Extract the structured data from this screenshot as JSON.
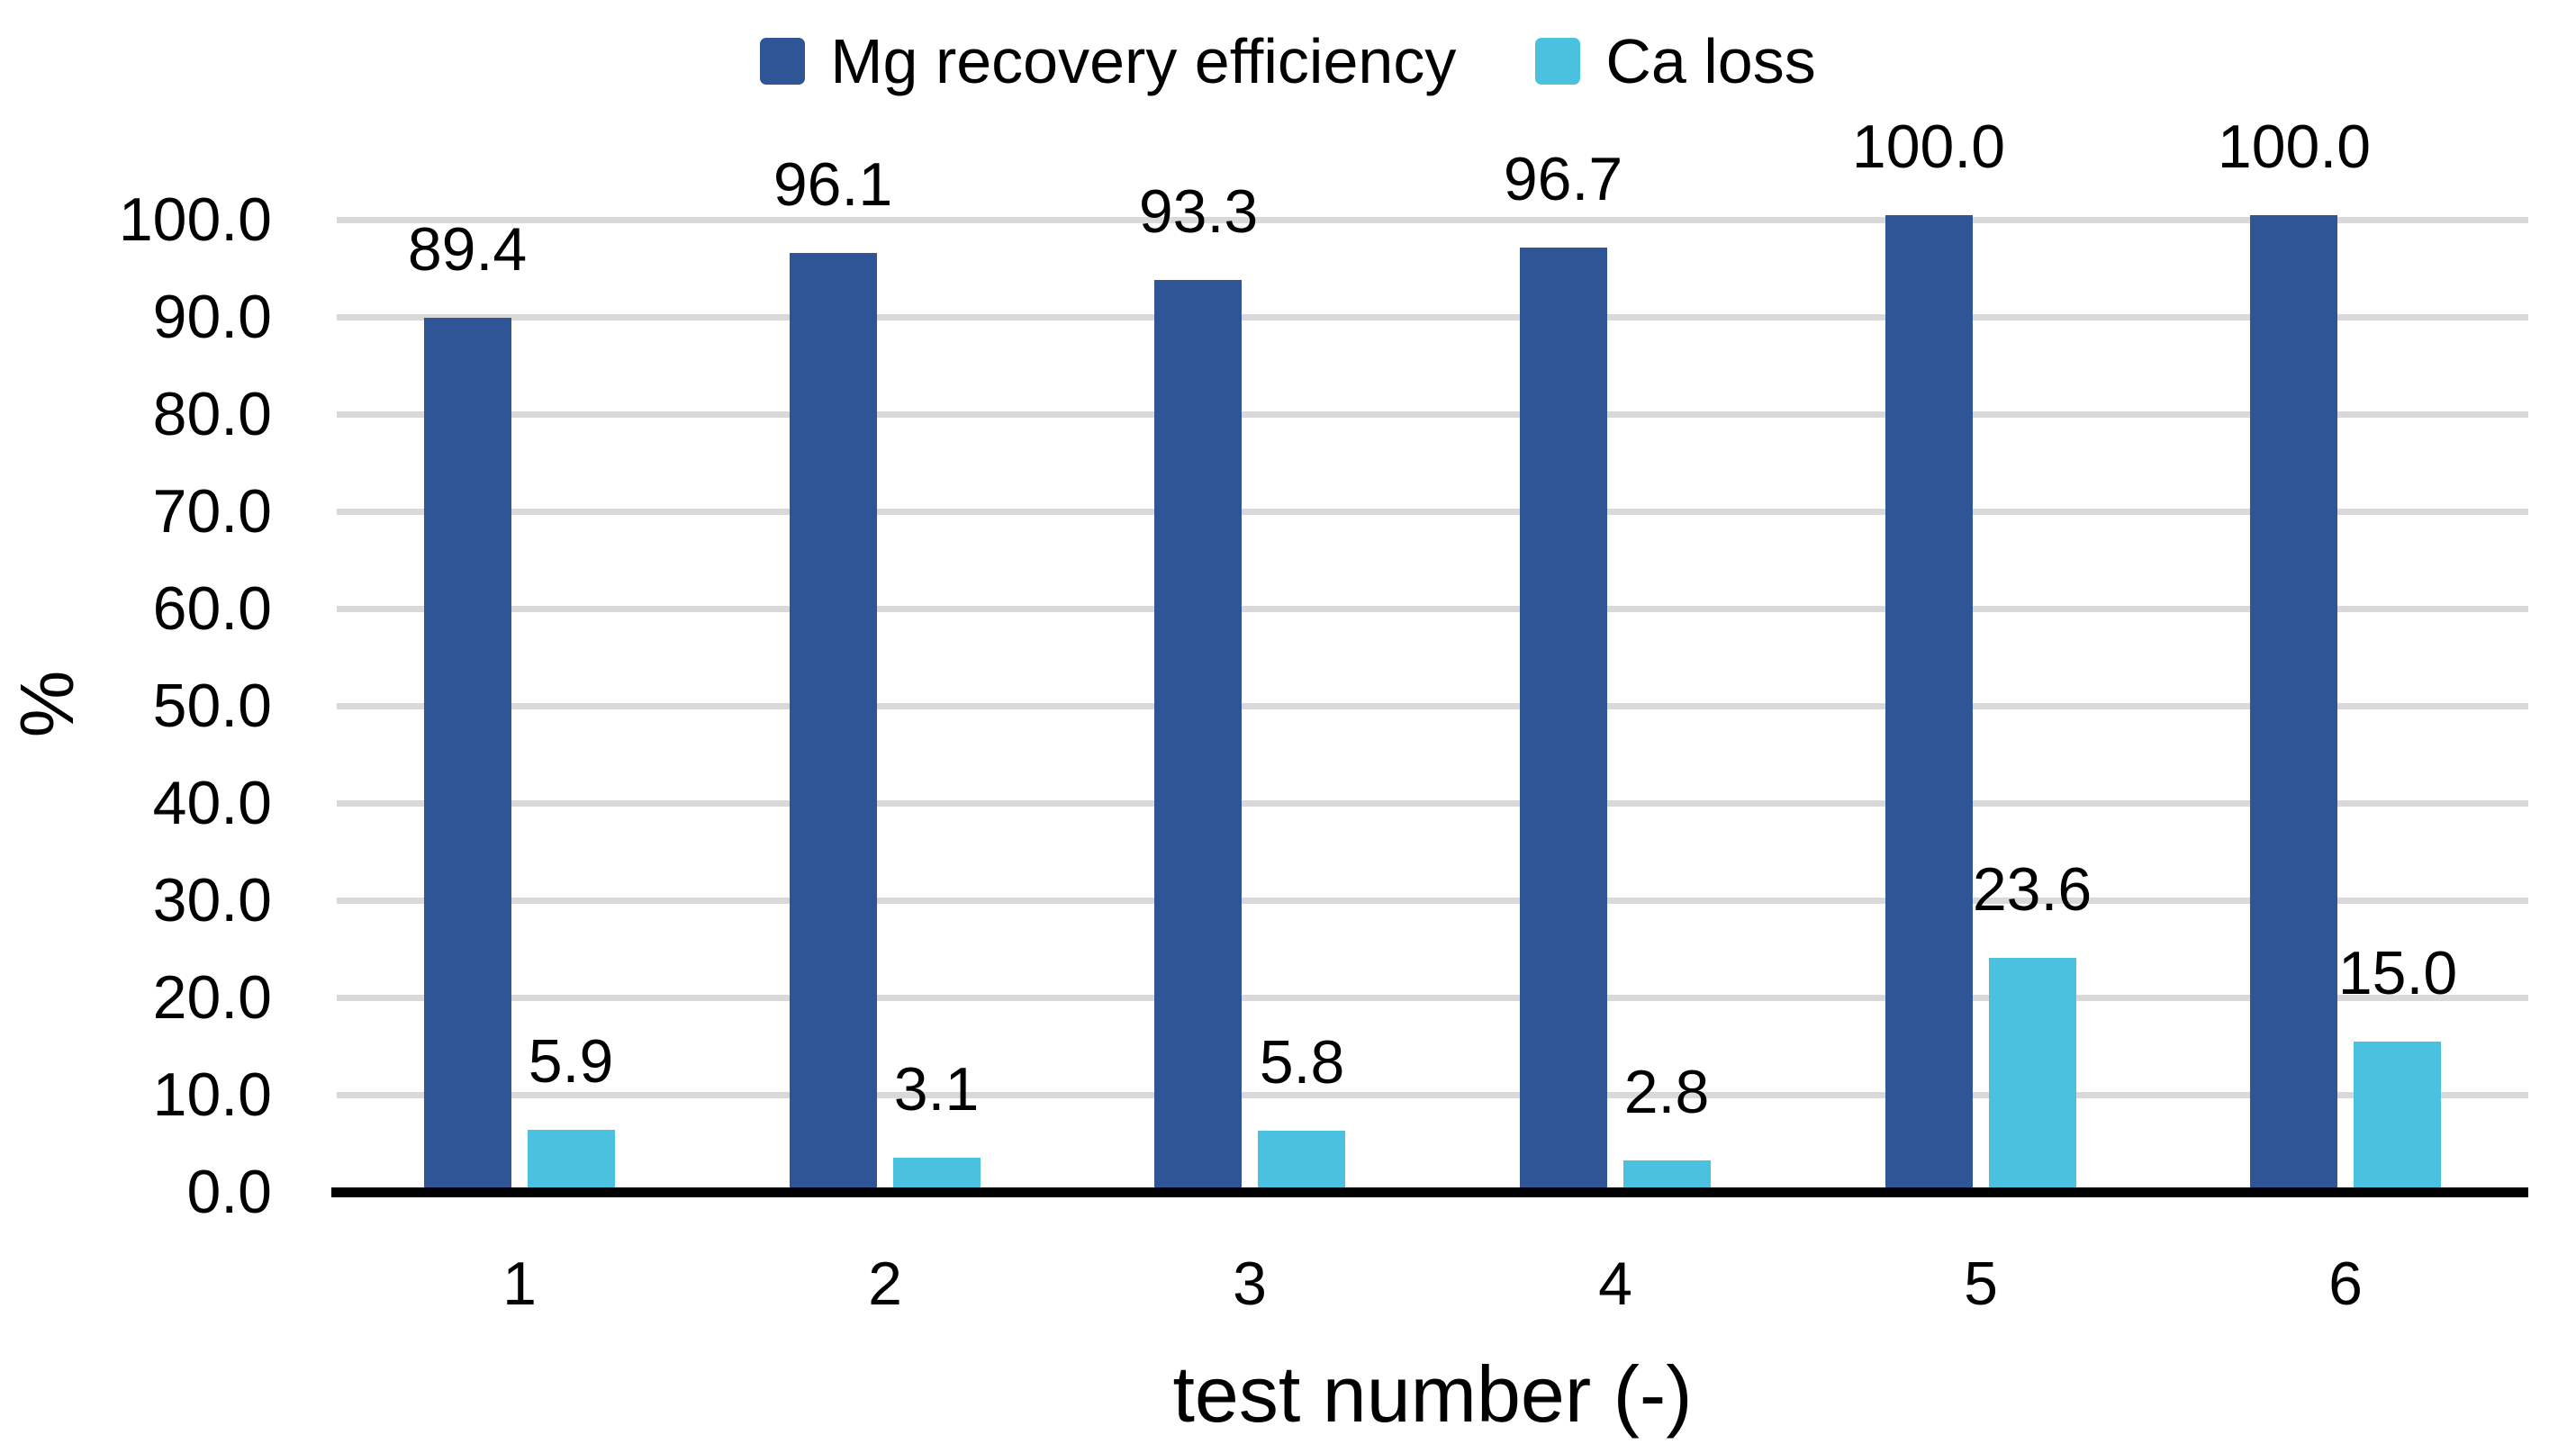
{
  "chart_data": {
    "type": "bar",
    "title": "",
    "xlabel": "test number (-)",
    "ylabel": "%",
    "categories": [
      "1",
      "2",
      "3",
      "4",
      "5",
      "6"
    ],
    "series": [
      {
        "name": "Mg recovery efficiency",
        "color": "#2F5596",
        "values": [
          89.4,
          96.1,
          93.3,
          96.7,
          100.0,
          100.0
        ],
        "labels": [
          "89.4",
          "96.1",
          "93.3",
          "96.7",
          "100.0",
          "100.0"
        ]
      },
      {
        "name": "Ca loss",
        "color": "#4BC1E0",
        "values": [
          5.9,
          3.1,
          5.8,
          2.8,
          23.6,
          15.0
        ],
        "labels": [
          "5.9",
          "3.1",
          "5.8",
          "2.8",
          "23.6",
          "15.0"
        ]
      }
    ],
    "ylim": [
      0,
      100
    ],
    "ytick_step": 10,
    "yticks": [
      "100.0",
      "90.0",
      "80.0",
      "70.0",
      "60.0",
      "50.0",
      "40.0",
      "30.0",
      "20.0",
      "10.0",
      "0.0"
    ],
    "grid": true,
    "legend_position": "top",
    "gridline_color": "#D9D9D9",
    "axis_color": "#000000",
    "background_color": "#FFFFFF"
  }
}
